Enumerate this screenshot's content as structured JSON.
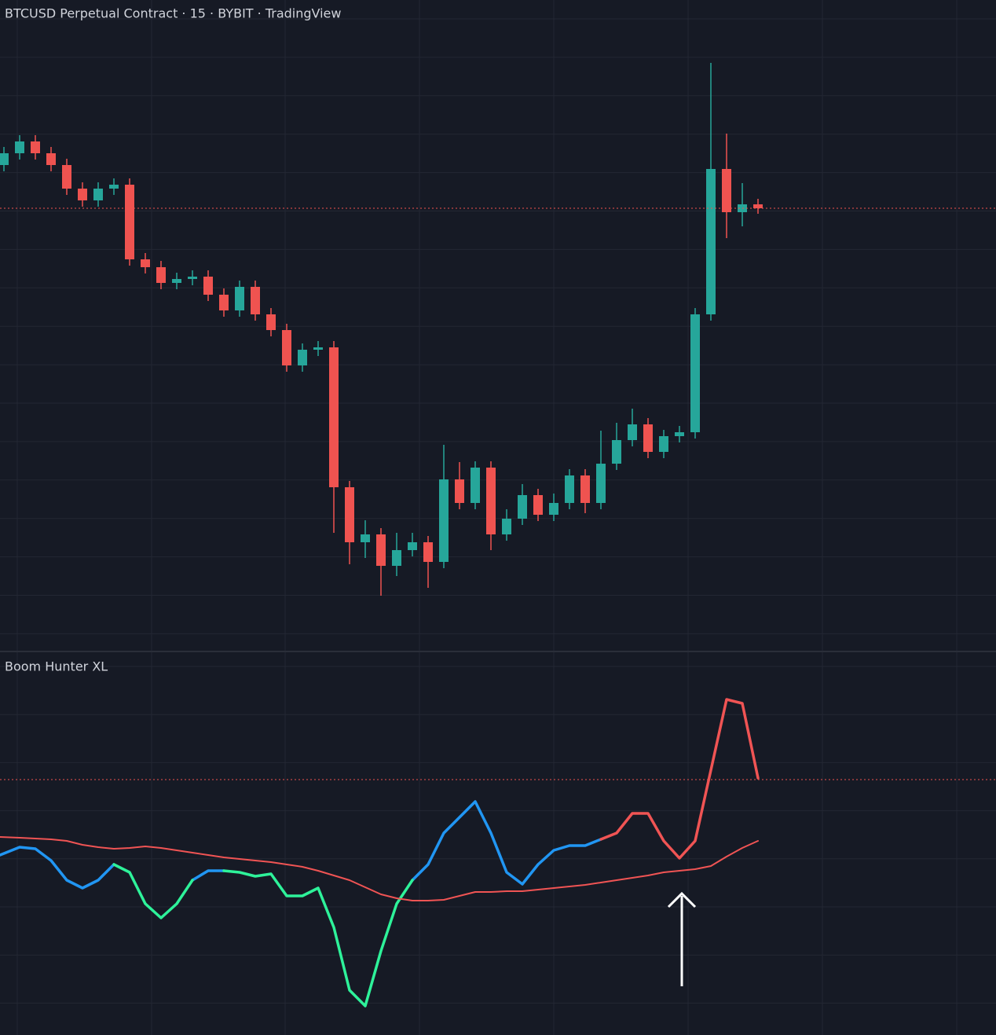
{
  "header": {
    "title": "BTCUSD Perpetual Contract · 15 · BYBIT · TradingView"
  },
  "chart_data": [
    {
      "type": "candlestick",
      "ylim": [
        0,
        828
      ],
      "up_color": "#26a69a",
      "down_color": "#ef5350",
      "open": [
        618,
        633,
        648,
        633,
        618,
        588,
        573,
        588,
        593,
        498,
        488,
        468,
        473,
        476,
        453,
        433,
        463,
        428,
        408,
        363,
        383,
        386,
        208,
        138,
        148,
        108,
        128,
        138,
        113,
        218,
        188,
        233,
        148,
        168,
        198,
        173,
        188,
        223,
        188,
        238,
        268,
        288,
        253,
        273,
        278,
        428,
        613,
        558,
        568
      ],
      "high": [
        641,
        656,
        656,
        641,
        626,
        596,
        596,
        601,
        601,
        506,
        496,
        481,
        484,
        484,
        461,
        471,
        471,
        436,
        416,
        391,
        394,
        394,
        216,
        166,
        156,
        150,
        150,
        146,
        262,
        240,
        241,
        241,
        180,
        212,
        206,
        200,
        231,
        231,
        280,
        290,
        308,
        296,
        281,
        286,
        436,
        748,
        658,
        595,
        575
      ],
      "low": [
        610,
        625,
        625,
        610,
        580,
        565,
        565,
        580,
        490,
        480,
        460,
        460,
        465,
        445,
        425,
        425,
        420,
        400,
        355,
        355,
        375,
        150,
        110,
        118,
        70,
        95,
        120,
        80,
        105,
        180,
        180,
        128,
        140,
        160,
        165,
        165,
        180,
        175,
        180,
        230,
        260,
        245,
        245,
        265,
        270,
        420,
        525,
        540,
        556
      ],
      "close": [
        633,
        648,
        633,
        618,
        588,
        573,
        588,
        593,
        498,
        488,
        468,
        473,
        476,
        453,
        433,
        463,
        428,
        408,
        363,
        383,
        386,
        208,
        138,
        148,
        108,
        128,
        138,
        113,
        218,
        188,
        233,
        148,
        168,
        198,
        173,
        188,
        223,
        188,
        238,
        268,
        288,
        253,
        273,
        278,
        428,
        613,
        558,
        568,
        563
      ],
      "last_price": 563,
      "last_price_color": "#ef5350"
    },
    {
      "type": "line",
      "title": "Boom Hunter XL",
      "ylim": [
        0,
        487
      ],
      "reference": 325,
      "reference_color": "#ef5350",
      "series": [
        {
          "color": "#2196f3",
          "values": [
            229,
            239,
            237,
            222,
            197,
            187,
            197,
            217,
            null,
            null,
            null,
            null,
            197,
            209,
            209,
            null,
            null,
            null,
            null,
            null,
            null,
            null,
            null,
            null,
            null,
            null,
            197,
            217,
            257,
            277,
            297,
            257,
            207,
            192,
            217,
            235,
            241,
            241,
            249,
            null,
            null,
            null,
            null,
            null,
            null,
            null,
            null,
            null,
            null
          ]
        },
        {
          "color": "#2ef29a",
          "values": [
            null,
            null,
            null,
            null,
            null,
            null,
            null,
            217,
            207,
            167,
            149,
            167,
            197,
            null,
            209,
            207,
            202,
            205,
            177,
            177,
            187,
            137,
            57,
            37,
            107,
            167,
            197,
            null,
            null,
            null,
            null,
            null,
            null,
            null,
            null,
            null,
            null,
            null,
            null,
            null,
            null,
            null,
            null,
            null,
            null,
            null,
            null,
            null,
            null
          ]
        },
        {
          "color": "#f05454",
          "values": [
            null,
            null,
            null,
            null,
            null,
            null,
            null,
            null,
            null,
            null,
            null,
            null,
            null,
            null,
            null,
            null,
            null,
            null,
            null,
            null,
            null,
            null,
            null,
            null,
            null,
            null,
            null,
            null,
            null,
            null,
            null,
            null,
            null,
            null,
            null,
            null,
            null,
            null,
            249,
            257,
            282,
            282,
            247,
            225,
            247,
            337,
            427,
            422,
            327
          ]
        },
        {
          "color": "#f05454",
          "thin": true,
          "values": [
            252,
            251,
            250,
            249,
            247,
            242,
            239,
            237,
            238,
            240,
            238,
            235,
            232,
            229,
            226,
            224,
            222,
            220,
            217,
            214,
            209,
            203,
            197,
            188,
            179,
            174,
            171,
            171,
            172,
            177,
            182,
            182,
            183,
            183,
            185,
            187,
            189,
            191,
            194,
            197,
            200,
            203,
            207,
            209,
            211,
            215,
            227,
            238,
            247
          ]
        }
      ]
    }
  ]
}
